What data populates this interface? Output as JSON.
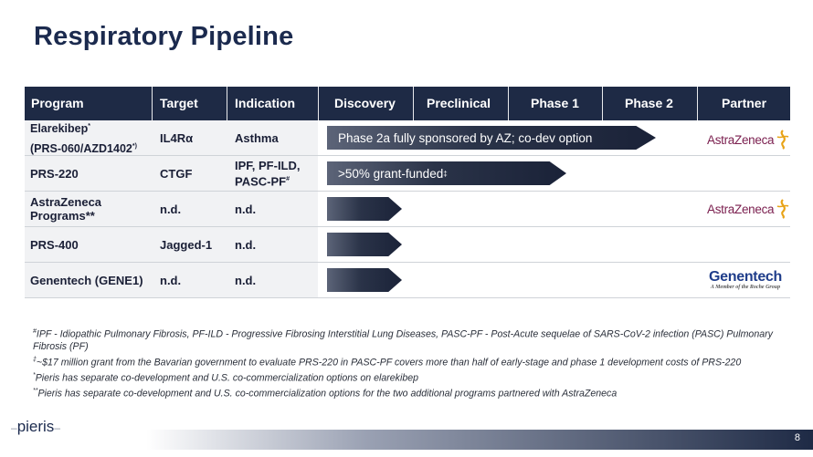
{
  "title": "Respiratory Pipeline",
  "headers": [
    "Program",
    "Target",
    "Indication",
    "Discovery",
    "Preclinical",
    "Phase 1",
    "Phase 2",
    "Partner"
  ],
  "rows": [
    {
      "program_line1": "Elarekibep",
      "program_sup1": "*",
      "program_line2": "(PRS-060/AZD1402",
      "program_sup2": "*)",
      "target": "IL4Rα",
      "indication_line1": "Asthma",
      "indication_line2": "",
      "bar_text": "Phase 2a fully sponsored by AZ; co-dev option",
      "bar_reach": "phase 2",
      "partner": "AstraZeneca"
    },
    {
      "program_line1": "PRS-220",
      "program_line2": "",
      "target": "CTGF",
      "indication_line1": "IPF, PF-ILD,",
      "indication_line2": "PASC-PF",
      "indication_sup": "#",
      "bar_text": ">50% grant-funded",
      "bar_sup": "‡",
      "bar_reach": "phase 1",
      "partner": ""
    },
    {
      "program_line1": "AstraZeneca",
      "program_line2": "Programs**",
      "target": "n.d.",
      "indication_line1": "n.d.",
      "indication_line2": "",
      "bar_text": "",
      "bar_reach": "discovery",
      "partner": "AstraZeneca"
    },
    {
      "program_line1": "PRS-400",
      "program_line2": "",
      "target": "Jagged-1",
      "indication_line1": "n.d.",
      "indication_line2": "",
      "bar_text": "",
      "bar_reach": "discovery",
      "partner": ""
    },
    {
      "program_line1": "Genentech (GENE1)",
      "program_line2": "",
      "target": "n.d.",
      "indication_line1": "n.d.",
      "indication_line2": "",
      "bar_text": "",
      "bar_reach": "discovery",
      "partner": "Genentech"
    }
  ],
  "partners": {
    "astrazeneca": "AstraZeneca",
    "genentech": "Genentech",
    "genentech_sub": "A Member of the Roche Group"
  },
  "footnotes": [
    {
      "mark": "#",
      "text": "IPF - Idiopathic Pulmonary Fibrosis, PF-ILD - Progressive Fibrosing Interstitial Lung Diseases, PASC-PF - Post-Acute sequelae of SARS-CoV-2 infection (PASC) Pulmonary Fibrosis (PF)"
    },
    {
      "mark": "‡",
      "text": "~$17 million grant from the Bavarian government to evaluate PRS-220 in PASC-PF covers more than half of early-stage and phase 1 development costs of PRS-220"
    },
    {
      "mark": "*",
      "text": "Pieris has separate co-development and U.S. co-commercialization options on elarekibep"
    },
    {
      "mark": "**",
      "text": "Pieris has separate co-development and U.S. co-commercialization options for the two  additional programs partnered with AstraZeneca"
    }
  ],
  "footer": {
    "logo": "pieris",
    "page_number": "8"
  },
  "colors": {
    "header_bg": "#1e2a45",
    "title": "#1b2a4e",
    "az_text": "#7a1e4e",
    "az_accent": "#e8a317",
    "genentech": "#1f3d8a"
  }
}
